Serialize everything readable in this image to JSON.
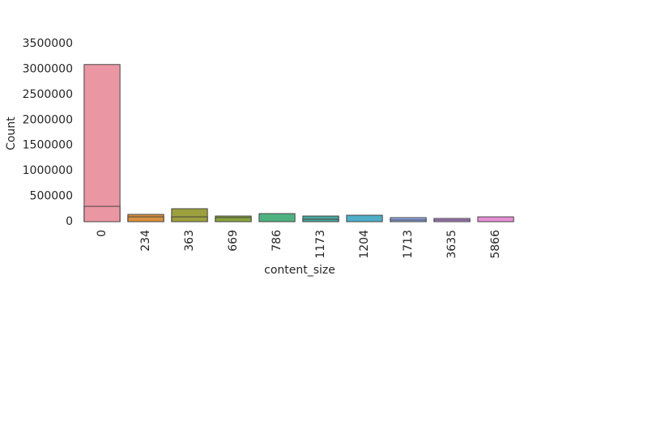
{
  "chart_data": {
    "type": "bar",
    "categories": [
      "0",
      "234",
      "363",
      "669",
      "786",
      "1173",
      "1204",
      "1713",
      "3635",
      "5866"
    ],
    "series": [
      {
        "values": [
          3090000,
          143000,
          255000,
          111000,
          159000,
          111000,
          127000,
          80000,
          64000,
          95000
        ]
      },
      {
        "values": [
          302000,
          95000,
          95000,
          80000,
          null,
          48000,
          null,
          32000,
          32000,
          null
        ]
      }
    ],
    "colors": [
      "#eb97a3",
      "#d9913f",
      "#9da03e",
      "#8aa53d",
      "#4fb281",
      "#4aa79d",
      "#4faec9",
      "#8ea8e6",
      "#c793e8",
      "#e78fd5"
    ],
    "xlabel": "content_size",
    "ylabel": "Count",
    "ylim": [
      0,
      3500000
    ],
    "yticks": [
      0,
      500000,
      1000000,
      1500000,
      2000000,
      2500000,
      3000000,
      3500000
    ],
    "grid": false
  }
}
